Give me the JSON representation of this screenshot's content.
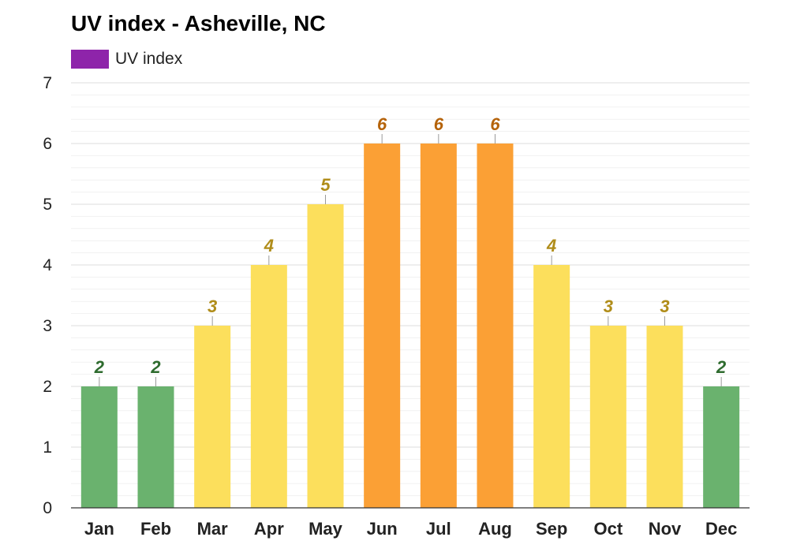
{
  "chart_data": {
    "type": "bar",
    "title": "UV index - Asheville, NC",
    "legend": {
      "label": "UV index",
      "color": "#8e24aa",
      "placement": "top-left"
    },
    "categories": [
      "Jan",
      "Feb",
      "Mar",
      "Apr",
      "May",
      "Jun",
      "Jul",
      "Aug",
      "Sep",
      "Oct",
      "Nov",
      "Dec"
    ],
    "values": [
      2,
      2,
      3,
      4,
      5,
      6,
      6,
      6,
      4,
      3,
      3,
      2
    ],
    "ylim": [
      0,
      7
    ],
    "yticks": [
      0,
      1,
      2,
      3,
      4,
      5,
      6,
      7
    ],
    "grid": true,
    "level_colors": {
      "low": {
        "max": 2,
        "bar": "#6ab26e",
        "label": "#2e6b2e"
      },
      "moderate": {
        "max": 5,
        "bar": "#fcdf5c",
        "label": "#b08d1a"
      },
      "high": {
        "max": 7,
        "bar": "#fba035",
        "label": "#b5630a"
      }
    }
  }
}
